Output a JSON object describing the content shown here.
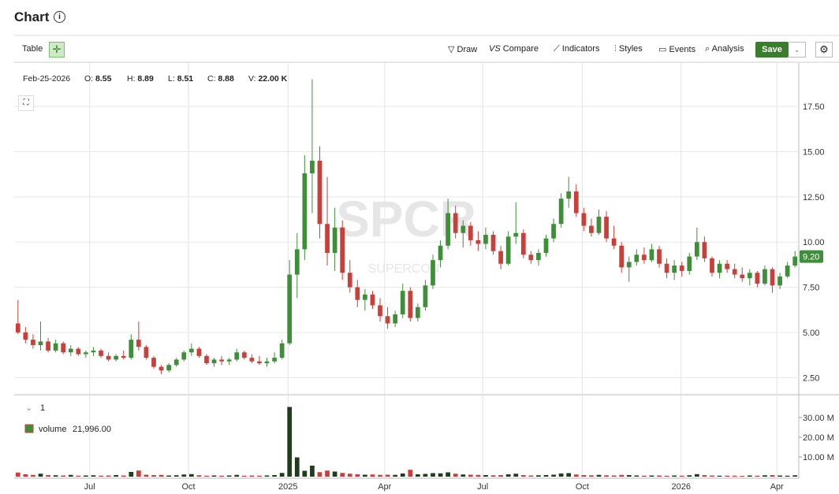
{
  "header": {
    "title": "Chart"
  },
  "toolbar": {
    "table": "Table",
    "draw": "Draw",
    "compare": "Compare",
    "indicators": "Indicators",
    "styles": "Styles",
    "events": "Events",
    "analysis": "Analysis",
    "save": "Save"
  },
  "ohlc_legend": {
    "date": "Feb-25-2026",
    "items": [
      {
        "label": "O:",
        "value": "8.55"
      },
      {
        "label": "H:",
        "value": "8.89"
      },
      {
        "label": "L:",
        "value": "8.51"
      },
      {
        "label": "C:",
        "value": "8.88"
      },
      {
        "label": "V:",
        "value": "22.00 K"
      }
    ]
  },
  "watermark": {
    "symbol": "SPCR",
    "name": "SUPERCON"
  },
  "volume_pane": {
    "index": "1",
    "legend_name": "volume",
    "legend_value": "21,996.00"
  },
  "chart_data": {
    "type": "candlestick",
    "up_color": "#3f8f3a",
    "down_color": "#c9403a",
    "grid": true,
    "xlim": [
      0,
      104
    ],
    "xticks": [
      {
        "value": 10,
        "label": "Jul"
      },
      {
        "value": 23.1,
        "label": "Oct"
      },
      {
        "value": 36.3,
        "label": "2025"
      },
      {
        "value": 49.1,
        "label": "Apr"
      },
      {
        "value": 62.1,
        "label": "Jul"
      },
      {
        "value": 75.3,
        "label": "Oct"
      },
      {
        "value": 88.4,
        "label": "2026"
      },
      {
        "value": 101.1,
        "label": "Apr"
      }
    ],
    "ylim": [
      1.6,
      19.9
    ],
    "yticks": [
      {
        "value": 2.5,
        "label": "2.50"
      },
      {
        "value": 5,
        "label": "5.00"
      },
      {
        "value": 7.5,
        "label": "7.50"
      },
      {
        "value": 10,
        "label": "10.00"
      },
      {
        "value": 12.5,
        "label": "12.50"
      },
      {
        "value": 15,
        "label": "15.00"
      },
      {
        "value": 17.5,
        "label": "17.50"
      }
    ],
    "last": {
      "value": 9.2,
      "label": "9.20"
    },
    "open": [
      5.5,
      5.0,
      4.6,
      4.3,
      4.5,
      4.0,
      4.4,
      3.9,
      4.1,
      3.8,
      3.9,
      4.0,
      3.7,
      3.5,
      3.7,
      3.6,
      4.6,
      4.2,
      3.6,
      3.1,
      2.9,
      3.2,
      3.5,
      3.9,
      4.1,
      3.7,
      3.3,
      3.5,
      3.4,
      3.5,
      3.9,
      3.6,
      3.4,
      3.3,
      3.4,
      3.6,
      4.4,
      8.2,
      9.6,
      13.8,
      14.5,
      11.0,
      9.4,
      10.8,
      8.3,
      7.5,
      6.8,
      7.1,
      6.5,
      5.9,
      5.5,
      6.0,
      7.3,
      5.8,
      6.4,
      7.6,
      9.0,
      9.8,
      11.6,
      10.5,
      10.9,
      10.1,
      9.9,
      10.4,
      9.5,
      8.8,
      10.3,
      10.5,
      9.3,
      9.0,
      9.4,
      10.2,
      11.0,
      12.4,
      12.8,
      11.6,
      10.9,
      10.5,
      11.4,
      10.2,
      9.8,
      8.6,
      8.9,
      9.3,
      9.0,
      9.6,
      8.8,
      8.3,
      8.7,
      8.4,
      9.2,
      10.0,
      9.1,
      8.3,
      8.8,
      8.5,
      8.2,
      8.0,
      8.3,
      7.7,
      8.5,
      7.6,
      8.1,
      8.7
    ],
    "high": [
      6.8,
      5.3,
      4.9,
      5.6,
      4.7,
      4.6,
      4.5,
      4.3,
      4.2,
      4.0,
      4.2,
      4.1,
      3.9,
      3.8,
      4.0,
      4.9,
      5.6,
      4.3,
      3.7,
      3.2,
      3.3,
      3.6,
      4.0,
      4.4,
      4.2,
      3.8,
      3.6,
      3.7,
      3.6,
      4.1,
      4.0,
      3.8,
      3.7,
      3.6,
      3.9,
      4.6,
      9.0,
      10.5,
      14.8,
      19.0,
      15.3,
      13.6,
      11.9,
      11.2,
      9.0,
      7.9,
      7.4,
      7.3,
      6.9,
      6.4,
      6.2,
      7.7,
      7.5,
      6.6,
      7.9,
      9.3,
      10.1,
      12.4,
      12.0,
      11.2,
      11.1,
      10.6,
      10.8,
      10.6,
      9.8,
      10.6,
      12.2,
      10.7,
      9.5,
      9.6,
      10.4,
      11.3,
      12.7,
      13.6,
      13.2,
      11.9,
      11.3,
      11.8,
      11.7,
      10.9,
      10.0,
      9.2,
      9.6,
      9.7,
      9.9,
      9.8,
      9.1,
      9.0,
      8.9,
      9.4,
      10.8,
      10.3,
      9.2,
      9.0,
      9.0,
      8.8,
      8.6,
      8.5,
      8.4,
      8.7,
      8.6,
      8.3,
      8.9,
      9.5
    ],
    "low": [
      4.9,
      4.4,
      4.1,
      4.0,
      3.9,
      3.9,
      3.8,
      3.7,
      3.7,
      3.6,
      3.7,
      3.6,
      3.4,
      3.4,
      3.5,
      3.5,
      4.0,
      3.5,
      3.0,
      2.7,
      2.8,
      3.1,
      3.4,
      3.7,
      3.6,
      3.2,
      3.1,
      3.2,
      3.2,
      3.4,
      3.5,
      3.3,
      3.2,
      3.1,
      3.3,
      3.5,
      4.3,
      6.9,
      9.0,
      11.6,
      10.2,
      8.7,
      8.4,
      7.9,
      7.2,
      6.4,
      6.2,
      6.3,
      5.6,
      5.2,
      5.3,
      5.8,
      5.6,
      5.6,
      6.2,
      7.4,
      8.6,
      9.6,
      10.2,
      9.7,
      9.8,
      9.5,
      9.6,
      9.3,
      8.5,
      8.7,
      9.9,
      9.1,
      8.8,
      8.7,
      9.2,
      10.0,
      10.8,
      11.9,
      11.4,
      10.6,
      10.3,
      10.4,
      10.0,
      9.6,
      8.3,
      7.8,
      8.7,
      8.8,
      8.9,
      8.6,
      8.0,
      7.9,
      8.1,
      8.2,
      9.0,
      8.9,
      8.1,
      8.0,
      8.3,
      8.0,
      7.8,
      7.6,
      7.5,
      7.6,
      7.2,
      7.4,
      8.0,
      8.6
    ],
    "close": [
      5.0,
      4.6,
      4.3,
      4.5,
      4.0,
      4.4,
      3.9,
      4.1,
      3.8,
      3.9,
      4.0,
      3.7,
      3.5,
      3.7,
      3.6,
      4.6,
      4.2,
      3.6,
      3.1,
      2.9,
      3.2,
      3.5,
      3.9,
      4.1,
      3.7,
      3.3,
      3.5,
      3.4,
      3.5,
      3.9,
      3.6,
      3.4,
      3.3,
      3.4,
      3.6,
      4.4,
      8.2,
      9.6,
      13.8,
      14.5,
      11.0,
      9.4,
      10.8,
      8.3,
      7.5,
      6.8,
      7.1,
      6.5,
      5.9,
      5.5,
      6.0,
      7.3,
      5.8,
      6.4,
      7.6,
      9.0,
      9.8,
      11.6,
      10.5,
      10.9,
      10.1,
      9.9,
      10.4,
      9.5,
      8.8,
      10.3,
      10.5,
      9.3,
      9.0,
      9.4,
      10.2,
      11.0,
      12.4,
      12.8,
      11.6,
      10.9,
      10.5,
      11.4,
      10.2,
      9.8,
      8.6,
      8.9,
      9.3,
      9.0,
      9.6,
      8.8,
      8.3,
      8.7,
      8.4,
      9.2,
      10.0,
      9.1,
      8.3,
      8.8,
      8.5,
      8.2,
      8.0,
      8.3,
      7.7,
      8.5,
      7.6,
      8.1,
      8.7,
      9.2
    ],
    "volume": [
      2.1,
      1.2,
      0.9,
      1.5,
      0.8,
      0.7,
      0.6,
      0.9,
      0.5,
      0.6,
      0.7,
      0.5,
      0.6,
      0.8,
      0.6,
      2.4,
      3.1,
      1.0,
      0.8,
      0.9,
      0.6,
      0.7,
      1.1,
      1.3,
      0.7,
      0.5,
      0.6,
      0.5,
      0.6,
      0.9,
      0.5,
      0.6,
      0.5,
      0.6,
      0.8,
      1.9,
      35.4,
      9.8,
      3.0,
      5.6,
      2.3,
      3.1,
      2.6,
      1.9,
      1.5,
      1.2,
      1.0,
      1.1,
      0.9,
      1.0,
      0.9,
      1.6,
      3.5,
      1.2,
      1.4,
      1.8,
      1.7,
      2.2,
      1.5,
      1.1,
      1.0,
      0.9,
      0.8,
      0.7,
      0.8,
      1.2,
      1.5,
      0.8,
      0.6,
      0.7,
      0.8,
      1.0,
      1.6,
      1.8,
      1.1,
      0.8,
      0.7,
      0.9,
      0.7,
      0.6,
      0.9,
      0.8,
      0.6,
      0.5,
      0.6,
      0.6,
      0.5,
      0.6,
      0.5,
      0.7,
      1.3,
      0.8,
      0.6,
      0.5,
      0.5,
      0.5,
      0.4,
      0.6,
      0.5,
      0.7,
      0.8,
      0.6,
      0.5,
      0.7
    ],
    "vlim": [
      0,
      41.2
    ],
    "vticks": [
      {
        "value": 10,
        "label": "10.00 M"
      },
      {
        "value": 20,
        "label": "20.00 M"
      },
      {
        "value": 30,
        "label": "30.00 M"
      }
    ]
  }
}
